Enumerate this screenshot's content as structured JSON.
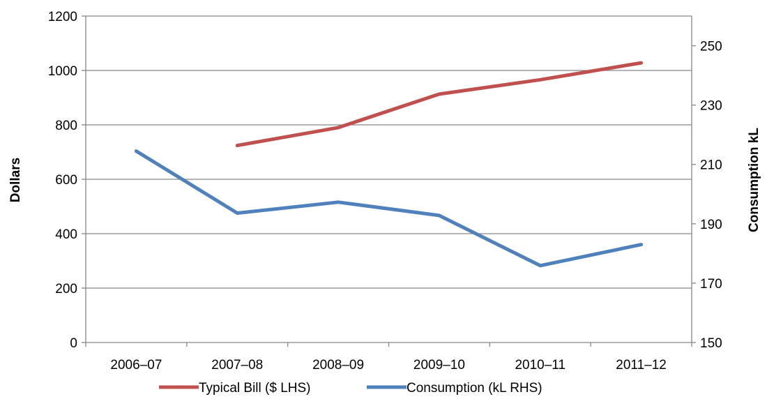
{
  "chart_data": {
    "type": "line",
    "categories": [
      "2006–07",
      "2007–08",
      "2008–09",
      "2009–10",
      "2010–11",
      "2011–12"
    ],
    "series": [
      {
        "name": "Typical Bill ($ LHS)",
        "axis": "left",
        "color": "#C0504D",
        "values": [
          null,
          724,
          790,
          913,
          966,
          1028
        ]
      },
      {
        "name": "Consumption (kL RHS)",
        "axis": "right",
        "color": "#4F81BD",
        "values": [
          214.5,
          193.6,
          197.3,
          192.8,
          175.9,
          183.0
        ]
      }
    ],
    "ylabel": "Dollars",
    "y2label": "Consumption kL",
    "ylim": [
      0,
      1200
    ],
    "y2lim": [
      150,
      260
    ],
    "yticks": [
      0,
      200,
      400,
      600,
      800,
      1000,
      1200
    ],
    "y2ticks": [
      150,
      170,
      190,
      210,
      230,
      250
    ],
    "grid": true,
    "legend": "bottom"
  }
}
